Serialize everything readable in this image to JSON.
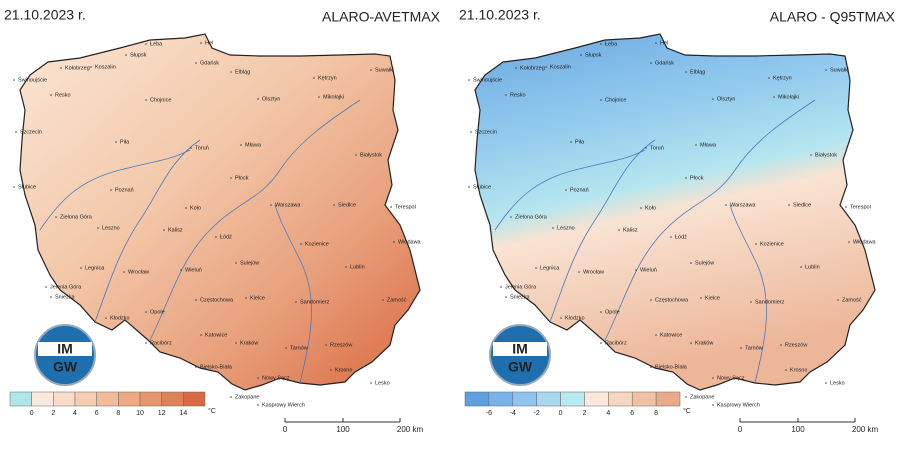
{
  "panels": [
    {
      "date": "21.10.2023 r.",
      "title": "ALARO-AVETMAX",
      "colorbar": {
        "ticks": [
          0,
          2,
          4,
          6,
          8,
          10,
          12,
          14
        ],
        "unit": "°C",
        "colors": [
          "#aee6ea",
          "#fbe8dc",
          "#f8dcc8",
          "#f5cdb2",
          "#f1bc9a",
          "#eca983",
          "#e6966d",
          "#de8058",
          "#d56a45"
        ]
      },
      "scale": {
        "labels": [
          "0",
          "100",
          "200 km"
        ]
      },
      "logo": [
        "IM",
        "GW"
      ],
      "cities": [
        "Świnoujście",
        "Kołobrzeg",
        "Koszalin",
        "Słupsk",
        "Łeba",
        "Hel",
        "Gdańsk",
        "Elbląg",
        "Kętrzyn",
        "Suwałki",
        "Mikołajki",
        "Olsztyn",
        "Resko",
        "Chojnice",
        "Szczecin",
        "Toruń",
        "Mława",
        "Białystok",
        "Piła",
        "Płock",
        "Poznań",
        "Warszawa",
        "Siedlce",
        "Terespol",
        "Słubice",
        "Koło",
        "Kalisz",
        "Łódź",
        "Kozienice",
        "Włodawa",
        "Zielona Góra",
        "Leszno",
        "Sulejów",
        "Lublin",
        "Legnica",
        "Wrocław",
        "Wieluń",
        "Jelenia Góra",
        "Śnieżka",
        "Częstochowa",
        "Kielce",
        "Sandomierz",
        "Zamość",
        "Opole",
        "Kłodzko",
        "Racibórz",
        "Katowice",
        "Kraków",
        "Tarnów",
        "Rzeszów",
        "Bielsko-Biała",
        "Nowy Sącz",
        "Krosno",
        "Lesko",
        "Zakopane",
        "Kasprowy Wierch"
      ]
    },
    {
      "date": "21.10.2023 r.",
      "title": "ALARO - Q95TMAX",
      "colorbar": {
        "ticks": [
          -6,
          -4,
          -2,
          0,
          2,
          4,
          6,
          8
        ],
        "unit": "°C",
        "colors": [
          "#5f9fe0",
          "#77b2e8",
          "#8fc4ee",
          "#a8d8ef",
          "#b8ebef",
          "#fbe8dc",
          "#f6d6c0",
          "#efc2a5",
          "#e7ab89"
        ]
      },
      "scale": {
        "labels": [
          "0",
          "100",
          "200 km"
        ]
      },
      "logo": [
        "IM",
        "GW"
      ],
      "cities": [
        "Świnoujście",
        "Kołobrzeg",
        "Koszalin",
        "Słupsk",
        "Łeba",
        "Hel",
        "Gdańsk",
        "Elbląg",
        "Kętrzyn",
        "Suwałki",
        "Mikołajki",
        "Olsztyn",
        "Resko",
        "Chojnice",
        "Szczecin",
        "Toruń",
        "Mława",
        "Białystok",
        "Piła",
        "Płock",
        "Poznań",
        "Warszawa",
        "Siedlce",
        "Terespol",
        "Słubice",
        "Koło",
        "Kalisz",
        "Łódź",
        "Kozienice",
        "Włodawa",
        "Zielona Góra",
        "Leszno",
        "Sulejów",
        "Lublin",
        "Legnica",
        "Wrocław",
        "Wieluń",
        "Jelenia Góra",
        "Śnieżka",
        "Częstochowa",
        "Kielce",
        "Sandomierz",
        "Zamość",
        "Opole",
        "Kłodzko",
        "Racibórz",
        "Katowice",
        "Kraków",
        "Tarnów",
        "Rzeszów",
        "Bielsko-Biała",
        "Nowy Sącz",
        "Krosno",
        "Lesko",
        "Zakopane",
        "Kasprowy Wierch"
      ]
    }
  ]
}
